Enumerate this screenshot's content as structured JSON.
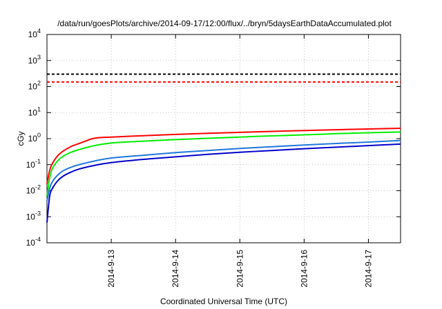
{
  "chart_data": {
    "type": "line",
    "title": "/data/run/goesPlots/archive/2014-09-17/12:00/flux/../bryn/5daysEarthDataAccumulated.plot",
    "xlabel": "Coordinated Universal Time (UTC)",
    "ylabel": "cGy",
    "yscale": "log",
    "ylim": [
      0.0001,
      10000
    ],
    "y_ticks": [
      {
        "value": 0.0001,
        "base": "10",
        "exp": "-4"
      },
      {
        "value": 0.001,
        "base": "10",
        "exp": "-3"
      },
      {
        "value": 0.01,
        "base": "10",
        "exp": "-2"
      },
      {
        "value": 0.1,
        "base": "10",
        "exp": "-1"
      },
      {
        "value": 1,
        "base": "10",
        "exp": "0"
      },
      {
        "value": 10,
        "base": "10",
        "exp": "1"
      },
      {
        "value": 100,
        "base": "10",
        "exp": "2"
      },
      {
        "value": 1000,
        "base": "10",
        "exp": "3"
      },
      {
        "value": 10000,
        "base": "10",
        "exp": "4"
      }
    ],
    "xlim": [
      "2014-09-12 00:00",
      "2014-09-17 12:00"
    ],
    "x_ticks": [
      {
        "value": "2014-09-13 00:00",
        "label": "2014-9-13"
      },
      {
        "value": "2014-09-14 00:00",
        "label": "2014-9-14"
      },
      {
        "value": "2014-09-15 00:00",
        "label": "2014-9-15"
      },
      {
        "value": "2014-09-16 00:00",
        "label": "2014-9-16"
      },
      {
        "value": "2014-09-17 00:00",
        "label": "2014-9-17"
      }
    ],
    "grid": true,
    "thresholds": [
      {
        "value": 300,
        "color": "#000000",
        "style": "dashed"
      },
      {
        "value": 150,
        "color": "#ff0000",
        "style": "dashed"
      }
    ],
    "series": [
      {
        "color": "#ff0000",
        "x": [
          "2014-09-12 00:00",
          "2014-09-12 01:00",
          "2014-09-12 02:00",
          "2014-09-12 04:00",
          "2014-09-12 06:00",
          "2014-09-12 09:00",
          "2014-09-12 12:00",
          "2014-09-12 15:00",
          "2014-09-12 18:00",
          "2014-09-13 00:00",
          "2014-09-13 12:00",
          "2014-09-14 00:00",
          "2014-09-14 12:00",
          "2014-09-15 00:00",
          "2014-09-15 12:00",
          "2014-09-16 00:00",
          "2014-09-16 12:00",
          "2014-09-17 00:00",
          "2014-09-17 12:00"
        ],
        "y": [
          0.018,
          0.06,
          0.11,
          0.22,
          0.33,
          0.5,
          0.65,
          0.85,
          1.05,
          1.15,
          1.3,
          1.45,
          1.6,
          1.75,
          1.9,
          2.05,
          2.2,
          2.35,
          2.5
        ]
      },
      {
        "color": "#00ee00",
        "x": [
          "2014-09-12 00:00",
          "2014-09-12 01:00",
          "2014-09-12 02:00",
          "2014-09-12 04:00",
          "2014-09-12 06:00",
          "2014-09-12 09:00",
          "2014-09-12 12:00",
          "2014-09-12 18:00",
          "2014-09-13 00:00",
          "2014-09-13 12:00",
          "2014-09-14 00:00",
          "2014-09-14 12:00",
          "2014-09-15 00:00",
          "2014-09-15 12:00",
          "2014-09-16 00:00",
          "2014-09-16 12:00",
          "2014-09-17 00:00",
          "2014-09-17 12:00"
        ],
        "y": [
          0.006,
          0.03,
          0.07,
          0.14,
          0.21,
          0.3,
          0.38,
          0.55,
          0.68,
          0.8,
          0.92,
          1.03,
          1.15,
          1.28,
          1.4,
          1.55,
          1.68,
          1.8
        ]
      },
      {
        "color": "#1f77dd",
        "x": [
          "2014-09-12 00:00",
          "2014-09-12 01:00",
          "2014-09-12 02:00",
          "2014-09-12 04:00",
          "2014-09-12 06:00",
          "2014-09-12 09:00",
          "2014-09-12 12:00",
          "2014-09-12 18:00",
          "2014-09-13 00:00",
          "2014-09-13 12:00",
          "2014-09-14 00:00",
          "2014-09-14 12:00",
          "2014-09-15 00:00",
          "2014-09-15 12:00",
          "2014-09-16 00:00",
          "2014-09-16 12:00",
          "2014-09-17 00:00",
          "2014-09-17 12:00"
        ],
        "y": [
          0.004,
          0.012,
          0.022,
          0.04,
          0.058,
          0.08,
          0.1,
          0.14,
          0.18,
          0.23,
          0.29,
          0.35,
          0.42,
          0.49,
          0.57,
          0.65,
          0.74,
          0.85
        ]
      },
      {
        "color": "#0000cc",
        "x": [
          "2014-09-12 00:00",
          "2014-09-12 01:00",
          "2014-09-12 02:00",
          "2014-09-12 04:00",
          "2014-09-12 06:00",
          "2014-09-12 09:00",
          "2014-09-12 12:00",
          "2014-09-12 18:00",
          "2014-09-13 00:00",
          "2014-09-13 12:00",
          "2014-09-14 00:00",
          "2014-09-14 12:00",
          "2014-09-15 00:00",
          "2014-09-15 12:00",
          "2014-09-16 00:00",
          "2014-09-16 12:00",
          "2014-09-17 00:00",
          "2014-09-17 12:00"
        ],
        "y": [
          0.0006,
          0.006,
          0.012,
          0.024,
          0.036,
          0.052,
          0.068,
          0.095,
          0.12,
          0.16,
          0.2,
          0.25,
          0.3,
          0.35,
          0.41,
          0.47,
          0.54,
          0.62
        ]
      }
    ]
  }
}
